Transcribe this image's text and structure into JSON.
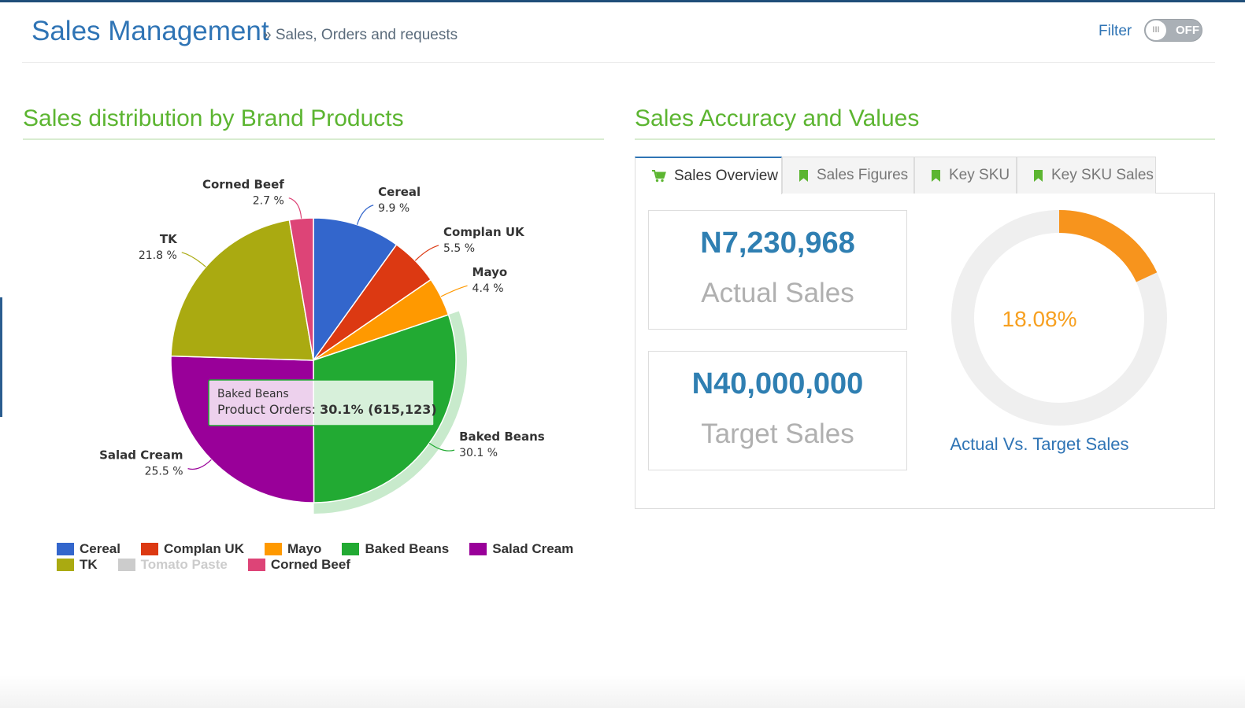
{
  "header": {
    "title": "Sales Management",
    "breadcrumb": "» Sales, Orders and requests",
    "filter_label": "Filter",
    "filter_toggle_state": "OFF",
    "filter_toggle_knob": "III"
  },
  "left_section": {
    "title": "Sales distribution by Brand Products"
  },
  "right_section": {
    "title": "Sales Accuracy and Values"
  },
  "tabs": [
    {
      "label": "Sales Overview",
      "icon": "cart-icon",
      "active": true
    },
    {
      "label": "Sales Figures",
      "icon": "bookmark-icon",
      "active": false
    },
    {
      "label": "Key SKU",
      "icon": "bookmark-icon",
      "active": false
    },
    {
      "label": "Key SKU Sales",
      "icon": "bookmark-icon",
      "active": false
    }
  ],
  "overview": {
    "actual_value": "N7,230,968",
    "actual_label": "Actual Sales",
    "target_value": "N40,000,000",
    "target_label": "Target Sales",
    "donut_percent_text": "18.08%",
    "donut_fraction": 0.1808,
    "donut_caption": "Actual Vs. Target Sales"
  },
  "colors": {
    "accent_green": "#5cb531",
    "title_blue": "#2f74b5",
    "value_blue": "#2f7fb2",
    "donut_orange": "#f7941d",
    "donut_track": "#efefef"
  },
  "chart_data": {
    "type": "pie",
    "title": "Sales distribution by Brand Products",
    "series_name": "Product Orders",
    "slices": [
      {
        "name": "Cereal",
        "value": 9.9,
        "label": "9.9 %",
        "color": "#3366cc"
      },
      {
        "name": "Complan UK",
        "value": 5.5,
        "label": "5.5 %",
        "color": "#dc3912"
      },
      {
        "name": "Mayo",
        "value": 4.4,
        "label": "4.4 %",
        "color": "#ff9900"
      },
      {
        "name": "Baked Beans",
        "value": 30.1,
        "label": "30.1 %",
        "color": "#22aa33",
        "highlighted": true
      },
      {
        "name": "Salad Cream",
        "value": 25.5,
        "label": "25.5 %",
        "color": "#990099"
      },
      {
        "name": "TK",
        "value": 21.8,
        "label": "21.8 %",
        "color": "#aaaa11"
      },
      {
        "name": "Tomato Paste",
        "value": 0,
        "label": "",
        "color": "#cccccc",
        "hidden": true
      },
      {
        "name": "Corned Beef",
        "value": 2.7,
        "label": "2.7 %",
        "color": "#dd4477"
      }
    ],
    "tooltip": {
      "title": "Baked Beans",
      "series": "Product Orders:",
      "value": "30.1% (615,123)"
    },
    "legend": {
      "rows": [
        [
          "Cereal",
          "Complan UK",
          "Mayo",
          "Baked Beans",
          "Salad Cream"
        ],
        [
          "TK",
          "Tomato Paste",
          "Corned Beef"
        ]
      ]
    }
  }
}
